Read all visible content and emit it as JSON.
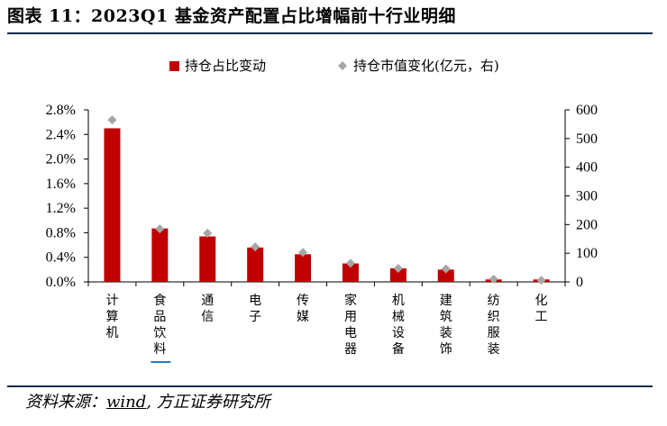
{
  "figure": {
    "title": "图表 11：2023Q1 基金资产配置占比增幅前十行业明细",
    "source_prefix": "资料来源：",
    "source_highlight": "wind",
    "source_suffix": ", 方正证券研究所"
  },
  "colors": {
    "bar": "#c00000",
    "marker": "#a6a6a6",
    "rule": "#0d2a4a",
    "underline": "#1f7ec8"
  },
  "chart_data": {
    "type": "bar",
    "title": "",
    "categories": [
      "计算机",
      "食品饮料",
      "通信",
      "电子",
      "传媒",
      "家用电器",
      "机械设备",
      "建筑装饰",
      "纺织服装",
      "化工"
    ],
    "series": [
      {
        "name": "持仓占比变动",
        "axis": "left",
        "kind": "bar",
        "values": [
          2.5,
          0.87,
          0.74,
          0.56,
          0.45,
          0.3,
          0.22,
          0.2,
          0.04,
          0.04
        ]
      },
      {
        "name": "持仓市值变化(亿元，右)",
        "axis": "right",
        "kind": "marker",
        "values": [
          565,
          185,
          170,
          122,
          103,
          65,
          47,
          45,
          10,
          6
        ]
      }
    ],
    "y_left": {
      "min": 0,
      "max": 2.8,
      "ticks": [
        "0.0%",
        "0.4%",
        "0.8%",
        "1.2%",
        "1.6%",
        "2.0%",
        "2.4%",
        "2.8%"
      ]
    },
    "y_right": {
      "min": 0,
      "max": 600,
      "ticks": [
        "0",
        "100",
        "200",
        "300",
        "400",
        "500",
        "600"
      ]
    },
    "legend": {
      "position": "top",
      "items": [
        "持仓占比变动",
        "持仓市值变化(亿元，右)"
      ]
    },
    "grid": false
  }
}
